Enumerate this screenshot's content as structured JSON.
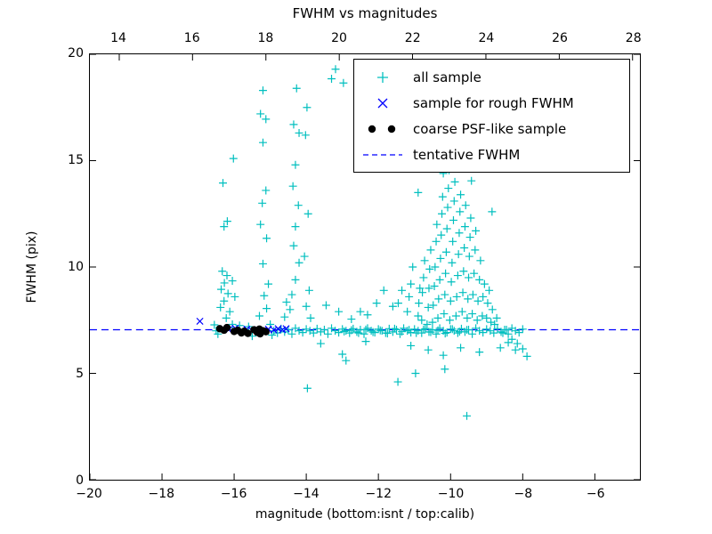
{
  "chart_data": {
    "type": "scatter",
    "title": "FWHM vs magnitudes",
    "xlabel": "magnitude (bottom:isnt / top:calib)",
    "ylabel": "FWHM (pix)",
    "axes": {
      "bottom_x": {
        "min": -20,
        "max": -4.75,
        "ticks": [
          -20,
          -18,
          -16,
          -14,
          -12,
          -10,
          -8,
          -6
        ]
      },
      "top_x": {
        "min": 13.2,
        "max": 28.2,
        "ticks": [
          14,
          16,
          18,
          20,
          22,
          24,
          26,
          28
        ]
      },
      "y": {
        "min": 0,
        "max": 20,
        "ticks": [
          0,
          5,
          10,
          15,
          20
        ]
      }
    },
    "grid": false,
    "legend_position": "upper right",
    "legend": [
      "all sample",
      "sample for rough FWHM",
      "coarse PSF-like sample",
      "tentative FWHM"
    ],
    "tentative_fwhm": 7.05,
    "colors": {
      "all": "#00bfbf",
      "rough": "#0000ff",
      "coarse": "#000000",
      "tentative": "#0000ff",
      "frame": "#000000",
      "background": "#ffffff"
    },
    "series": [
      {
        "id": "all-sample",
        "name": "all sample",
        "marker": "plus",
        "color": "#00bfbf",
        "points": [
          [
            -16.55,
            7.28
          ],
          [
            -16.5,
            7.0
          ],
          [
            -16.45,
            6.85
          ],
          [
            -16.05,
            7.3
          ],
          [
            -15.85,
            7.25
          ],
          [
            -15.6,
            7.2
          ],
          [
            -15.5,
            6.75
          ],
          [
            -15.0,
            7.3
          ],
          [
            -14.95,
            6.8
          ],
          [
            -14.9,
            7.0
          ],
          [
            -14.8,
            6.9
          ],
          [
            -14.7,
            7.1
          ],
          [
            -14.6,
            6.95
          ],
          [
            -14.5,
            7.05
          ],
          [
            -14.4,
            6.85
          ],
          [
            -14.3,
            7.12
          ],
          [
            -14.2,
            7.0
          ],
          [
            -14.1,
            6.92
          ],
          [
            -14.0,
            7.08
          ],
          [
            -13.9,
            7.0
          ],
          [
            -13.8,
            6.9
          ],
          [
            -13.7,
            7.1
          ],
          [
            -13.6,
            6.95
          ],
          [
            -13.5,
            7.05
          ],
          [
            -13.4,
            6.85
          ],
          [
            -13.3,
            7.12
          ],
          [
            -13.2,
            7.0
          ],
          [
            -13.1,
            6.92
          ],
          [
            -13.0,
            7.08
          ],
          [
            -12.9,
            7.0
          ],
          [
            -12.8,
            6.9
          ],
          [
            -12.7,
            7.1
          ],
          [
            -12.6,
            6.95
          ],
          [
            -12.5,
            7.05
          ],
          [
            -12.4,
            6.85
          ],
          [
            -12.3,
            7.12
          ],
          [
            -12.2,
            7.0
          ],
          [
            -12.1,
            6.92
          ],
          [
            -12.0,
            7.08
          ],
          [
            -11.9,
            7.0
          ],
          [
            -11.8,
            6.9
          ],
          [
            -11.7,
            7.1
          ],
          [
            -11.6,
            6.95
          ],
          [
            -11.5,
            7.05
          ],
          [
            -11.4,
            6.85
          ],
          [
            -11.3,
            7.12
          ],
          [
            -11.2,
            7.0
          ],
          [
            -11.1,
            6.92
          ],
          [
            -11.0,
            7.08
          ],
          [
            -10.9,
            7.0
          ],
          [
            -10.8,
            6.9
          ],
          [
            -10.7,
            7.1
          ],
          [
            -10.6,
            6.95
          ],
          [
            -10.5,
            7.05
          ],
          [
            -10.4,
            6.85
          ],
          [
            -10.3,
            7.12
          ],
          [
            -10.2,
            7.0
          ],
          [
            -10.1,
            6.92
          ],
          [
            -10.0,
            7.08
          ],
          [
            -9.9,
            7.0
          ],
          [
            -9.8,
            6.9
          ],
          [
            -9.7,
            7.1
          ],
          [
            -9.6,
            6.95
          ],
          [
            -9.5,
            7.05
          ],
          [
            -9.4,
            6.85
          ],
          [
            -9.3,
            7.12
          ],
          [
            -9.2,
            7.0
          ],
          [
            -9.1,
            6.92
          ],
          [
            -9.0,
            7.08
          ],
          [
            -8.9,
            7.0
          ],
          [
            -8.8,
            6.9
          ],
          [
            -8.7,
            7.1
          ],
          [
            -8.6,
            6.95
          ],
          [
            -8.5,
            7.05
          ],
          [
            -8.4,
            6.85
          ],
          [
            -8.3,
            7.12
          ],
          [
            -8.2,
            7.0
          ],
          [
            -8.1,
            6.92
          ],
          [
            -8.0,
            7.08
          ],
          [
            -12.95,
            6.97
          ],
          [
            -12.75,
            7.03
          ],
          [
            -12.55,
            6.9
          ],
          [
            -12.35,
            7.06
          ],
          [
            -12.15,
            6.94
          ],
          [
            -11.95,
            7.02
          ],
          [
            -11.75,
            6.88
          ],
          [
            -11.55,
            7.1
          ],
          [
            -11.35,
            6.96
          ],
          [
            -11.15,
            7.04
          ],
          [
            -10.95,
            6.9
          ],
          [
            -10.75,
            7.06
          ],
          [
            -10.55,
            6.94
          ],
          [
            -10.35,
            7.02
          ],
          [
            -10.15,
            6.88
          ],
          [
            -9.95,
            7.08
          ],
          [
            -9.75,
            6.96
          ],
          [
            -9.55,
            7.04
          ],
          [
            -16.31,
            13.95
          ],
          [
            -16.19,
            12.15
          ],
          [
            -16.28,
            11.9
          ],
          [
            -16.02,
            15.1
          ],
          [
            -16.33,
            9.8
          ],
          [
            -16.2,
            9.6
          ],
          [
            -16.27,
            9.25
          ],
          [
            -16.36,
            8.95
          ],
          [
            -16.17,
            8.75
          ],
          [
            -16.28,
            8.4
          ],
          [
            -16.38,
            8.1
          ],
          [
            -16.12,
            7.9
          ],
          [
            -16.22,
            7.6
          ],
          [
            -16.05,
            9.35
          ],
          [
            -15.98,
            8.6
          ],
          [
            -15.2,
            18.3
          ],
          [
            -15.27,
            17.2
          ],
          [
            -15.12,
            16.95
          ],
          [
            -15.2,
            15.85
          ],
          [
            -15.12,
            13.6
          ],
          [
            -15.22,
            13.0
          ],
          [
            -15.27,
            12.0
          ],
          [
            -15.1,
            11.35
          ],
          [
            -15.2,
            10.15
          ],
          [
            -15.05,
            9.2
          ],
          [
            -15.17,
            8.65
          ],
          [
            -15.1,
            8.05
          ],
          [
            -15.3,
            7.7
          ],
          [
            -14.27,
            18.4
          ],
          [
            -14.35,
            16.7
          ],
          [
            -14.2,
            16.3
          ],
          [
            -14.3,
            14.8
          ],
          [
            -14.37,
            13.8
          ],
          [
            -14.22,
            12.9
          ],
          [
            -14.3,
            11.9
          ],
          [
            -14.35,
            11.0
          ],
          [
            -14.2,
            10.2
          ],
          [
            -14.3,
            9.4
          ],
          [
            -14.4,
            8.7
          ],
          [
            -14.45,
            8.0
          ],
          [
            -14.55,
            8.35
          ],
          [
            -14.6,
            7.65
          ],
          [
            -13.98,
            17.5
          ],
          [
            -14.02,
            16.2
          ],
          [
            -13.95,
            12.5
          ],
          [
            -14.05,
            10.5
          ],
          [
            -13.92,
            8.9
          ],
          [
            -14.0,
            8.15
          ],
          [
            -13.88,
            7.6
          ],
          [
            -13.3,
            18.85
          ],
          [
            -12.97,
            18.65
          ],
          [
            -13.19,
            19.3
          ],
          [
            -13.45,
            8.2
          ],
          [
            -13.1,
            7.9
          ],
          [
            -12.75,
            7.55
          ],
          [
            -12.3,
            7.75
          ],
          [
            -12.05,
            8.3
          ],
          [
            -11.85,
            8.9
          ],
          [
            -11.6,
            8.15
          ],
          [
            -12.5,
            7.9
          ],
          [
            -13.6,
            6.4
          ],
          [
            -13.0,
            5.9
          ],
          [
            -12.9,
            5.6
          ],
          [
            -13.97,
            4.3
          ],
          [
            -11.46,
            4.6
          ],
          [
            -9.55,
            3.0
          ],
          [
            -12.35,
            6.5
          ],
          [
            -11.1,
            6.3
          ],
          [
            -10.62,
            6.1
          ],
          [
            -10.2,
            5.85
          ],
          [
            -9.72,
            6.2
          ],
          [
            -9.2,
            6.0
          ],
          [
            -8.62,
            6.2
          ],
          [
            -8.2,
            6.1
          ],
          [
            -10.97,
            5.0
          ],
          [
            -10.16,
            5.2
          ],
          [
            -11.45,
            8.3
          ],
          [
            -11.35,
            8.9
          ],
          [
            -11.2,
            7.9
          ],
          [
            -11.15,
            8.6
          ],
          [
            -11.1,
            9.2
          ],
          [
            -11.05,
            10.0
          ],
          [
            -10.9,
            7.7
          ],
          [
            -10.88,
            8.3
          ],
          [
            -10.85,
            9.0
          ],
          [
            -10.9,
            13.5
          ],
          [
            -10.8,
            7.5
          ],
          [
            -10.78,
            8.8
          ],
          [
            -10.75,
            9.5
          ],
          [
            -10.72,
            10.3
          ],
          [
            -10.65,
            7.3
          ],
          [
            -10.62,
            8.1
          ],
          [
            -10.6,
            9.0
          ],
          [
            -10.58,
            9.9
          ],
          [
            -10.55,
            10.8
          ],
          [
            -10.5,
            7.4
          ],
          [
            -10.48,
            8.2
          ],
          [
            -10.45,
            9.1
          ],
          [
            -10.43,
            10.0
          ],
          [
            -10.4,
            11.2
          ],
          [
            -10.38,
            12.0
          ],
          [
            -10.35,
            7.6
          ],
          [
            -10.33,
            8.5
          ],
          [
            -10.3,
            9.4
          ],
          [
            -10.28,
            10.4
          ],
          [
            -10.26,
            11.5
          ],
          [
            -10.24,
            12.5
          ],
          [
            -10.22,
            13.3
          ],
          [
            -10.2,
            14.4
          ],
          [
            -10.18,
            7.8
          ],
          [
            -10.16,
            8.7
          ],
          [
            -10.14,
            9.7
          ],
          [
            -10.12,
            10.7
          ],
          [
            -10.1,
            11.8
          ],
          [
            -10.08,
            12.8
          ],
          [
            -10.06,
            13.7
          ],
          [
            -10.04,
            14.55
          ],
          [
            -10.02,
            7.5
          ],
          [
            -10.0,
            8.4
          ],
          [
            -9.98,
            9.3
          ],
          [
            -9.96,
            10.2
          ],
          [
            -9.94,
            11.2
          ],
          [
            -9.92,
            12.2
          ],
          [
            -9.9,
            13.1
          ],
          [
            -9.88,
            14.0
          ],
          [
            -9.85,
            7.7
          ],
          [
            -9.83,
            8.6
          ],
          [
            -9.8,
            9.6
          ],
          [
            -9.78,
            10.6
          ],
          [
            -9.76,
            11.6
          ],
          [
            -9.74,
            12.6
          ],
          [
            -9.72,
            13.4
          ],
          [
            -9.68,
            7.9
          ],
          [
            -9.66,
            8.8
          ],
          [
            -9.64,
            9.8
          ],
          [
            -9.62,
            10.9
          ],
          [
            -9.6,
            11.9
          ],
          [
            -9.58,
            12.9
          ],
          [
            -9.54,
            7.6
          ],
          [
            -9.52,
            8.5
          ],
          [
            -9.5,
            9.5
          ],
          [
            -9.48,
            10.5
          ],
          [
            -9.46,
            11.4
          ],
          [
            -9.44,
            12.3
          ],
          [
            -9.4,
            7.8
          ],
          [
            -9.38,
            8.7
          ],
          [
            -9.35,
            9.7
          ],
          [
            -9.32,
            10.8
          ],
          [
            -9.3,
            11.7
          ],
          [
            -9.26,
            7.5
          ],
          [
            -9.24,
            8.4
          ],
          [
            -9.2,
            9.4
          ],
          [
            -9.17,
            10.3
          ],
          [
            -9.12,
            7.7
          ],
          [
            -9.1,
            8.6
          ],
          [
            -9.06,
            9.2
          ],
          [
            -9.0,
            7.6
          ],
          [
            -8.97,
            8.3
          ],
          [
            -8.93,
            8.9
          ],
          [
            -8.88,
            7.4
          ],
          [
            -8.84,
            8.0
          ],
          [
            -8.78,
            7.3
          ],
          [
            -8.72,
            7.6
          ],
          [
            -8.85,
            12.6
          ],
          [
            -9.42,
            14.05
          ],
          [
            -8.55,
            6.9
          ],
          [
            -8.45,
            7.05
          ],
          [
            -8.4,
            6.45
          ],
          [
            -8.3,
            6.6
          ],
          [
            -8.15,
            6.4
          ],
          [
            -8.0,
            6.15
          ],
          [
            -7.88,
            5.8
          ]
        ]
      },
      {
        "id": "rough-fwhm-sample",
        "name": "sample for rough FWHM",
        "marker": "x",
        "color": "#0000ff",
        "points": [
          [
            -16.95,
            7.45
          ],
          [
            -16.33,
            7.1
          ],
          [
            -16.15,
            7.05
          ],
          [
            -15.97,
            7.12
          ],
          [
            -15.8,
            7.02
          ],
          [
            -15.65,
            7.08
          ],
          [
            -15.5,
            7.0
          ],
          [
            -15.35,
            7.06
          ],
          [
            -15.2,
            7.0
          ],
          [
            -15.05,
            7.08
          ],
          [
            -14.9,
            7.04
          ],
          [
            -14.78,
            7.1
          ],
          [
            -14.66,
            7.05
          ],
          [
            -14.56,
            7.1
          ]
        ]
      },
      {
        "id": "coarse-psf-sample",
        "name": "coarse PSF-like sample",
        "marker": "dot",
        "color": "#000000",
        "points": [
          [
            -16.4,
            7.1
          ],
          [
            -16.28,
            7.03
          ],
          [
            -16.2,
            7.15
          ],
          [
            -16.0,
            6.97
          ],
          [
            -15.9,
            7.02
          ],
          [
            -15.8,
            6.9
          ],
          [
            -15.72,
            6.98
          ],
          [
            -15.62,
            6.88
          ],
          [
            -15.45,
            7.05
          ],
          [
            -15.36,
            6.93
          ],
          [
            -15.28,
            6.86
          ],
          [
            -15.2,
            7.0
          ],
          [
            -15.12,
            6.96
          ],
          [
            -15.3,
            7.08
          ]
        ]
      }
    ]
  }
}
